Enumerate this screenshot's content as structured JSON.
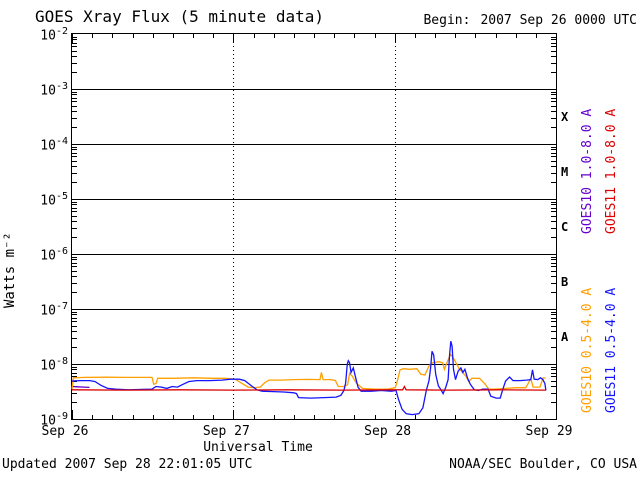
{
  "header": {
    "title": "GOES Xray Flux (5 minute data)",
    "begin_label": "Begin:",
    "begin_value": "2007 Sep 26 0000 UTC"
  },
  "footer": {
    "updated": "Updated 2007 Sep 28 22:01:05 UTC",
    "source": "NOAA/SEC Boulder, CO USA"
  },
  "chart_data": {
    "type": "line",
    "title": "GOES Xray Flux (5 minute data)",
    "xlabel": "Universal Time",
    "ylabel": "Watts m⁻²",
    "x_range_hours": [
      0,
      72
    ],
    "x_tick_labels": [
      "Sep 26",
      "Sep 27",
      "Sep 28",
      "Sep 29"
    ],
    "x_minor_tick_hours": 3,
    "y_log_range": [
      -9,
      -2
    ],
    "y_tick_base": "10",
    "y_tick_exponents": [
      -2,
      -3,
      -4,
      -5,
      -6,
      -7,
      -8,
      -9
    ],
    "grid": {
      "horizontal_solid_at_decades": true,
      "vertical_dashed_at_days": [
        1,
        2
      ]
    },
    "legend_position": "right-vertical",
    "flare_classes": [
      {
        "letter": "X",
        "band": [
          -4,
          -3
        ]
      },
      {
        "letter": "M",
        "band": [
          -5,
          -4
        ]
      },
      {
        "letter": "C",
        "band": [
          -6,
          -5
        ]
      },
      {
        "letter": "B",
        "band": [
          -7,
          -6
        ]
      },
      {
        "letter": "A",
        "band": [
          -8,
          -7
        ]
      }
    ],
    "series": [
      {
        "name": "GOES10 1.0-8.0 A",
        "color": "#6600cc",
        "points": [
          [
            0,
            3.9e-09
          ],
          [
            0.8,
            3.85e-09
          ],
          [
            1.8,
            3.8e-09
          ],
          [
            2.6,
            3.75e-09
          ]
        ]
      },
      {
        "name": "GOES10 0.5-4.0 A",
        "color": "#ff9f00",
        "points": [
          [
            0,
            3.5e-09
          ],
          [
            0.2,
            5.6e-09
          ],
          [
            2,
            5.7e-09
          ],
          [
            5,
            5.75e-09
          ],
          [
            8,
            5.7e-09
          ],
          [
            11.9,
            5.7e-09
          ],
          [
            12.15,
            4.3e-09
          ],
          [
            12.5,
            4.4e-09
          ],
          [
            12.75,
            5.5e-09
          ],
          [
            15,
            5.5e-09
          ],
          [
            18,
            5.6e-09
          ],
          [
            21,
            5.5e-09
          ],
          [
            22.8,
            5.5e-09
          ],
          [
            24.3,
            5.3e-09
          ],
          [
            25.2,
            4.5e-09
          ],
          [
            26.2,
            3.8e-09
          ],
          [
            27.2,
            3.7e-09
          ],
          [
            28.0,
            3.8e-09
          ],
          [
            28.7,
            4.6e-09
          ],
          [
            29.3,
            5.1e-09
          ],
          [
            31,
            5.1e-09
          ],
          [
            33,
            5.2e-09
          ],
          [
            35,
            5.25e-09
          ],
          [
            36.9,
            5.2e-09
          ],
          [
            37.1,
            7e-09
          ],
          [
            37.35,
            5.2e-09
          ],
          [
            38.5,
            5.2e-09
          ],
          [
            39.2,
            5e-09
          ],
          [
            39.6,
            3.9e-09
          ],
          [
            40.5,
            3.9e-09
          ],
          [
            41.0,
            4.2e-09
          ],
          [
            41.3,
            6.8e-09
          ],
          [
            41.7,
            6e-09
          ],
          [
            42.3,
            4.5e-09
          ],
          [
            43.2,
            3.6e-09
          ],
          [
            45,
            3.5e-09
          ],
          [
            47,
            3.5e-09
          ],
          [
            48.1,
            3.7e-09
          ],
          [
            48.45,
            5.2e-09
          ],
          [
            48.8,
            7.8e-09
          ],
          [
            49.3,
            8.2e-09
          ],
          [
            50.2,
            8e-09
          ],
          [
            51.3,
            8.2e-09
          ],
          [
            51.9,
            6.5e-09
          ],
          [
            52.5,
            6.3e-09
          ],
          [
            53.1,
            9.2e-09
          ],
          [
            53.6,
            1.05e-08
          ],
          [
            54.6,
            1.1e-08
          ],
          [
            55.15,
            1.05e-08
          ],
          [
            55.4,
            8e-09
          ],
          [
            55.7,
            1e-08
          ],
          [
            56.3,
            1.5e-08
          ],
          [
            56.7,
            1.3e-08
          ],
          [
            57.6,
            8.2e-09
          ],
          [
            58.6,
            6e-09
          ],
          [
            59.0,
            4.8e-09
          ],
          [
            59.5,
            5.5e-09
          ],
          [
            60.6,
            5.5e-09
          ],
          [
            61.4,
            4.4e-09
          ],
          [
            62.0,
            3.5e-09
          ],
          [
            63,
            3.5e-09
          ],
          [
            64.5,
            3.6e-09
          ],
          [
            66,
            3.7e-09
          ],
          [
            67.5,
            3.7e-09
          ],
          [
            68.25,
            5.4e-09
          ],
          [
            68.6,
            3.8e-09
          ],
          [
            69.6,
            3.8e-09
          ],
          [
            70.1,
            5.6e-09
          ],
          [
            70.45,
            5.5e-09
          ]
        ]
      },
      {
        "name": "GOES11 0.5-4.0 A",
        "color": "#1414ff",
        "points": [
          [
            0,
            4.9e-09
          ],
          [
            1.2,
            5e-09
          ],
          [
            2.6,
            5e-09
          ],
          [
            3.4,
            4.8e-09
          ],
          [
            4.3,
            4.1e-09
          ],
          [
            5.3,
            3.6e-09
          ],
          [
            6.5,
            3.5e-09
          ],
          [
            8.5,
            3.4e-09
          ],
          [
            10.5,
            3.45e-09
          ],
          [
            11.9,
            3.5e-09
          ],
          [
            12.5,
            3.9e-09
          ],
          [
            13.3,
            3.8e-09
          ],
          [
            14.1,
            3.6e-09
          ],
          [
            14.9,
            3.9e-09
          ],
          [
            15.7,
            3.8e-09
          ],
          [
            16.4,
            4.2e-09
          ],
          [
            17.4,
            4.8e-09
          ],
          [
            18.6,
            5e-09
          ],
          [
            20.5,
            5e-09
          ],
          [
            22.3,
            5.1e-09
          ],
          [
            23.6,
            5.3e-09
          ],
          [
            24.9,
            5.3e-09
          ],
          [
            25.7,
            5e-09
          ],
          [
            26.7,
            4e-09
          ],
          [
            27.5,
            3.4e-09
          ],
          [
            28.3,
            3.2e-09
          ],
          [
            30,
            3.15e-09
          ],
          [
            31.5,
            3.1e-09
          ],
          [
            33.0,
            3e-09
          ],
          [
            33.4,
            2.9e-09
          ],
          [
            33.7,
            2.45e-09
          ],
          [
            35.5,
            2.4e-09
          ],
          [
            37.5,
            2.45e-09
          ],
          [
            39.3,
            2.5e-09
          ],
          [
            40.0,
            2.7e-09
          ],
          [
            40.45,
            3.3e-09
          ],
          [
            40.7,
            4.5e-09
          ],
          [
            40.95,
            1e-08
          ],
          [
            41.1,
            1.15e-08
          ],
          [
            41.3,
            1.05e-08
          ],
          [
            41.5,
            7e-09
          ],
          [
            41.85,
            8.5e-09
          ],
          [
            42.15,
            6e-09
          ],
          [
            42.55,
            3.8e-09
          ],
          [
            43.0,
            3.2e-09
          ],
          [
            44.5,
            3.2e-09
          ],
          [
            46,
            3.3e-09
          ],
          [
            47.5,
            3.2e-09
          ],
          [
            48.2,
            3.3e-09
          ],
          [
            48.55,
            2.3e-09
          ],
          [
            49.1,
            1.5e-09
          ],
          [
            49.7,
            1.25e-09
          ],
          [
            50.6,
            1.2e-09
          ],
          [
            51.6,
            1.25e-09
          ],
          [
            52.2,
            1.6e-09
          ],
          [
            52.7,
            3.3e-09
          ],
          [
            53.1,
            5e-09
          ],
          [
            53.35,
            8.5e-09
          ],
          [
            53.55,
            1.7e-08
          ],
          [
            53.8,
            1.45e-08
          ],
          [
            54.1,
            6.5e-09
          ],
          [
            54.5,
            4e-09
          ],
          [
            54.9,
            3.4e-09
          ],
          [
            55.2,
            2.9e-09
          ],
          [
            55.6,
            3.8e-09
          ],
          [
            55.95,
            5.2e-09
          ],
          [
            56.15,
            1.4e-08
          ],
          [
            56.35,
            2.6e-08
          ],
          [
            56.55,
            2.1e-08
          ],
          [
            56.75,
            8e-09
          ],
          [
            57.05,
            5.2e-09
          ],
          [
            57.45,
            7.5e-09
          ],
          [
            57.85,
            8.5e-09
          ],
          [
            58.15,
            7e-09
          ],
          [
            58.45,
            8e-09
          ],
          [
            58.85,
            5.5e-09
          ],
          [
            59.25,
            4.3e-09
          ],
          [
            59.85,
            3.4e-09
          ],
          [
            60.45,
            3.3e-09
          ],
          [
            61.1,
            3.5e-09
          ],
          [
            61.9,
            3.5e-09
          ],
          [
            62.3,
            2.6e-09
          ],
          [
            63.1,
            2.4e-09
          ],
          [
            63.7,
            2.4e-09
          ],
          [
            64.1,
            3.5e-09
          ],
          [
            64.5,
            4.9e-09
          ],
          [
            65.1,
            5.8e-09
          ],
          [
            65.6,
            5e-09
          ],
          [
            66.6,
            5e-09
          ],
          [
            67.6,
            5.1e-09
          ],
          [
            68.25,
            5.2e-09
          ],
          [
            68.5,
            7.8e-09
          ],
          [
            68.75,
            5.3e-09
          ],
          [
            69.3,
            5.2e-09
          ],
          [
            69.7,
            5.6e-09
          ],
          [
            70.05,
            5.2e-09
          ],
          [
            70.35,
            4.4e-09
          ],
          [
            70.5,
            3.3e-09
          ]
        ]
      },
      {
        "name": "GOES11 1.0-8.0 A",
        "color": "#dd0000",
        "points": [
          [
            0,
            3.4e-09
          ],
          [
            8,
            3.35e-09
          ],
          [
            16,
            3.4e-09
          ],
          [
            24,
            3.35e-09
          ],
          [
            32,
            3.4e-09
          ],
          [
            40,
            3.35e-09
          ],
          [
            48,
            3.4e-09
          ],
          [
            49.2,
            3.4e-09
          ],
          [
            49.45,
            3.9e-09
          ],
          [
            49.7,
            3.4e-09
          ],
          [
            56,
            3.35e-09
          ],
          [
            64,
            3.4e-09
          ],
          [
            70.5,
            3.35e-09
          ]
        ]
      }
    ],
    "legend_order": [
      "GOES10 1.0-8.0 A",
      "GOES11 1.0-8.0 A",
      "GOES10 0.5-4.0 A",
      "GOES11 0.5-4.0 A"
    ]
  }
}
